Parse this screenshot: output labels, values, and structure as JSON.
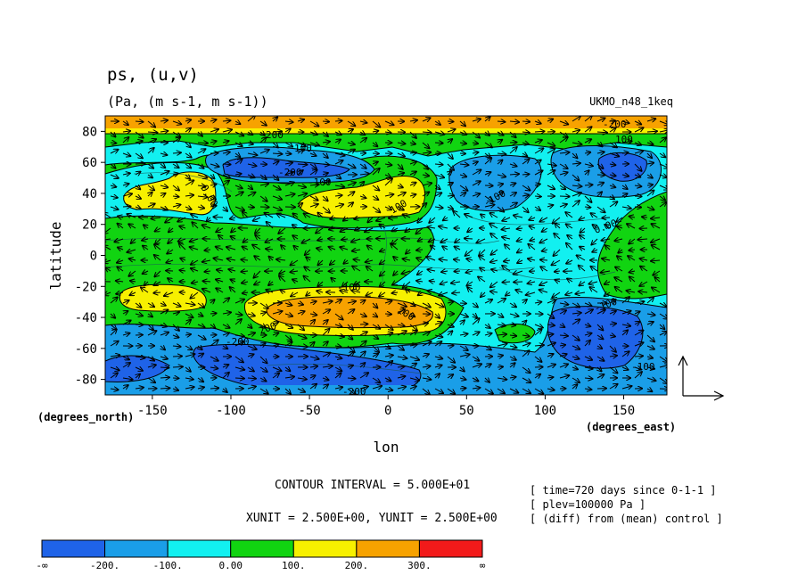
{
  "chart_data": {
    "type": "heatmap",
    "title": "ps, (u,v)",
    "subtitle": "(Pa, (m s-1, m s-1))",
    "dataset": "UKMO_n48_1keq",
    "xlabel": "lon",
    "ylabel": "latitude",
    "x_units_label": "(degrees_east)",
    "y_units_label": "(degrees_north)",
    "xticks": [
      -150,
      -100,
      -50,
      0,
      50,
      100,
      150
    ],
    "yticks": [
      -80,
      -60,
      -40,
      -20,
      0,
      20,
      40,
      60,
      80
    ],
    "xlim": [
      -180,
      177.5
    ],
    "ylim": [
      -90,
      90
    ],
    "contour_interval_text": "CONTOUR INTERVAL = 5.000E+01",
    "unit_text": "XUNIT = 2.500E+00, YUNIT = 2.500E+00",
    "info": [
      "[ time=720 days since 0-1-1 ]",
      "[ plev=100000 Pa ]",
      "[ (diff) from (mean) control ]"
    ],
    "contour_labels": [
      "200",
      "100",
      "-100",
      "-200",
      "0.00",
      "100",
      "-200",
      "-100",
      "100",
      "200",
      "0.00",
      "-100",
      "200",
      "-200",
      "-100",
      "-200",
      "-100"
    ],
    "colorbar": {
      "labels": [
        "-∞",
        "-200.",
        "-100.",
        "0.00",
        "100.",
        "200.",
        "300.",
        "∞"
      ],
      "colors": [
        "#1f63e8",
        "#1a9ee8",
        "#12f0f0",
        "#11d411",
        "#f7f000",
        "#f7a200",
        "#f21a1a"
      ]
    }
  }
}
